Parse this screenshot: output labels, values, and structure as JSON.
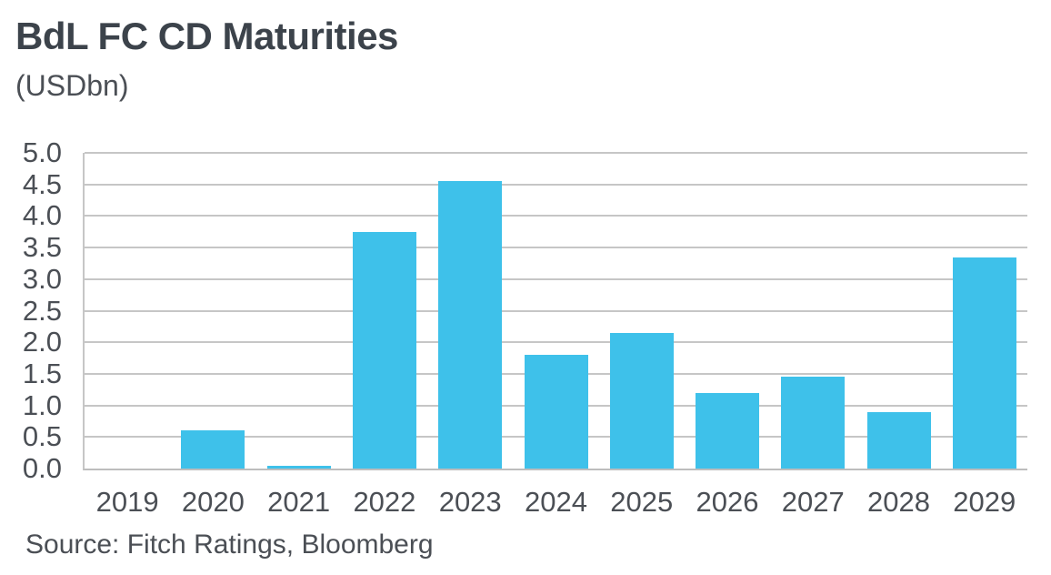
{
  "header": {
    "title": "BdL FC CD Maturities",
    "subtitle": "(USDbn)"
  },
  "footer": {
    "source": "Source: Fitch Ratings, Bloomberg"
  },
  "colors": {
    "bar": "#3ec1ea",
    "title_text": "#3c434b",
    "axis_text": "#4b4f55",
    "gridline": "#c6c6c6",
    "axis_line": "#bdbdbd",
    "background": "#ffffff"
  },
  "chart_data": {
    "type": "bar",
    "title": "BdL FC CD Maturities",
    "subtitle": "(USDbn)",
    "categories": [
      "2019",
      "2020",
      "2021",
      "2022",
      "2023",
      "2024",
      "2025",
      "2026",
      "2027",
      "2028",
      "2029"
    ],
    "values": [
      0,
      0.6,
      0.05,
      3.75,
      4.55,
      1.8,
      2.15,
      1.2,
      1.45,
      0.9,
      3.35
    ],
    "xlabel": "",
    "ylabel": "",
    "ylim": [
      0,
      5
    ],
    "ytick_step": 0.5,
    "ytick_label_format": "one_decimal",
    "grid": true,
    "legend_position": "none",
    "bar_color": "#3ec1ea",
    "source": "Source: Fitch Ratings, Bloomberg"
  }
}
